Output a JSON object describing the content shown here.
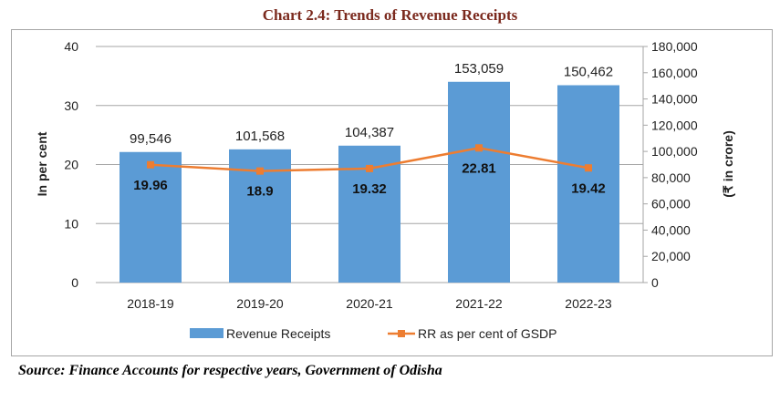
{
  "title": "Chart 2.4: Trends of Revenue Receipts",
  "source": "Source: Finance Accounts for respective years, Government of Odisha",
  "chart_data": {
    "type": "bar",
    "title": "Chart 2.4: Trends of Revenue Receipts",
    "categories": [
      "2018-19",
      "2019-20",
      "2020-21",
      "2021-22",
      "2022-23"
    ],
    "series": [
      {
        "name": "Revenue Receipts",
        "type": "bar",
        "axis": "right",
        "color": "#5b9bd5",
        "values": [
          99546,
          101568,
          104387,
          153059,
          150462
        ],
        "labels": [
          "99,546",
          "101,568",
          "104,387",
          "153,059",
          "150,462"
        ]
      },
      {
        "name": "RR as per cent of GSDP",
        "type": "line",
        "axis": "left",
        "color": "#ed7d31",
        "values": [
          19.96,
          18.9,
          19.32,
          22.81,
          19.42
        ],
        "labels": [
          "19.96",
          "18.9",
          "19.32",
          "22.81",
          "19.42"
        ]
      }
    ],
    "ylabel": "In per cent",
    "y2label": "(₹ in crore)",
    "ylim": [
      0,
      40
    ],
    "y2lim": [
      0,
      180000
    ],
    "yticks": [
      "0",
      "10",
      "20",
      "30",
      "40"
    ],
    "y2ticks": [
      "0",
      "20,000",
      "40,000",
      "60,000",
      "80,000",
      "100,000",
      "120,000",
      "140,000",
      "160,000",
      "180,000"
    ],
    "grid": true,
    "legend": "bottom"
  }
}
